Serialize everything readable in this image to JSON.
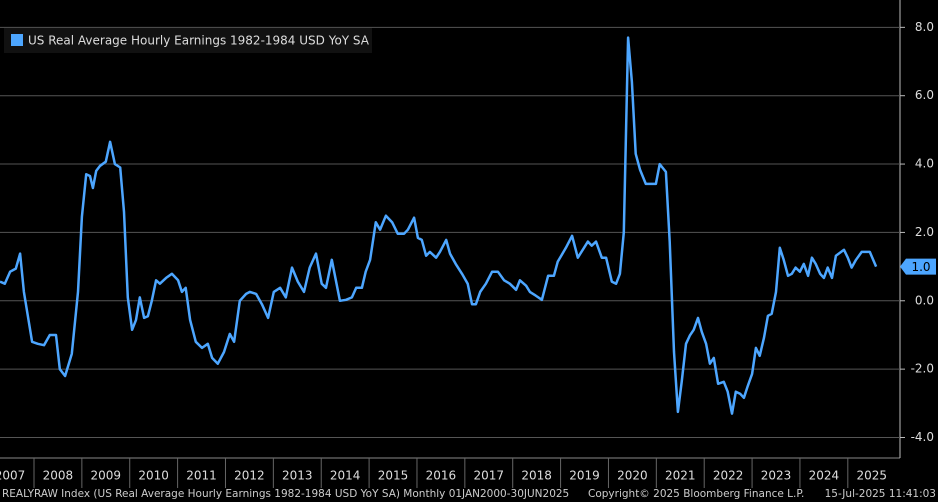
{
  "chart_data": {
    "type": "line",
    "legend": "upper left",
    "grid": true,
    "axis_side": "right",
    "xlim": [
      2007.29,
      2026.09
    ],
    "ylim": [
      -4.6,
      8.8
    ],
    "yticks": [
      {
        "value": 8,
        "label": "8.0"
      },
      {
        "value": 6,
        "label": "6.0"
      },
      {
        "value": 4,
        "label": "4.0"
      },
      {
        "value": 2,
        "label": "2.0"
      },
      {
        "value": 0,
        "label": "0.0"
      },
      {
        "value": -2,
        "label": "-2.0"
      },
      {
        "value": -4,
        "label": "-4.0"
      }
    ],
    "xticks": [
      {
        "value": 2007.5,
        "label": "2007"
      },
      {
        "value": 2008.5,
        "label": "2008"
      },
      {
        "value": 2009.5,
        "label": "2009"
      },
      {
        "value": 2010.5,
        "label": "2010"
      },
      {
        "value": 2011.5,
        "label": "2011"
      },
      {
        "value": 2012.5,
        "label": "2012"
      },
      {
        "value": 2013.5,
        "label": "2013"
      },
      {
        "value": 2014.5,
        "label": "2014"
      },
      {
        "value": 2015.5,
        "label": "2015"
      },
      {
        "value": 2016.5,
        "label": "2016"
      },
      {
        "value": 2017.5,
        "label": "2017"
      },
      {
        "value": 2018.5,
        "label": "2018"
      },
      {
        "value": 2019.5,
        "label": "2019"
      },
      {
        "value": 2020.5,
        "label": "2020"
      },
      {
        "value": 2021.5,
        "label": "2021"
      },
      {
        "value": 2022.5,
        "label": "2022"
      },
      {
        "value": 2023.5,
        "label": "2023"
      },
      {
        "value": 2024.5,
        "label": "2024"
      },
      {
        "value": 2025.5,
        "label": "2025"
      }
    ],
    "x": [
      2007.29,
      2007.39,
      2007.5,
      2007.62,
      2007.71,
      2007.79,
      2007.96,
      2008.08,
      2008.21,
      2008.33,
      2008.46,
      2008.54,
      2008.65,
      2008.79,
      2008.92,
      2009.0,
      2009.09,
      2009.17,
      2009.23,
      2009.3,
      2009.38,
      2009.5,
      2009.59,
      2009.69,
      2009.8,
      2009.88,
      2009.96,
      2010.05,
      2010.13,
      2010.21,
      2010.3,
      2010.38,
      2010.46,
      2010.55,
      2010.63,
      2010.76,
      2010.88,
      2011.01,
      2011.09,
      2011.17,
      2011.26,
      2011.38,
      2011.51,
      2011.63,
      2011.72,
      2011.84,
      2011.97,
      2012.09,
      2012.18,
      2012.3,
      2012.43,
      2012.51,
      2012.64,
      2012.76,
      2012.89,
      2013.01,
      2013.14,
      2013.26,
      2013.39,
      2013.51,
      2013.64,
      2013.76,
      2013.89,
      2014.01,
      2014.1,
      2014.22,
      2014.39,
      2014.52,
      2014.64,
      2014.73,
      2014.85,
      2014.93,
      2015.02,
      2015.14,
      2015.23,
      2015.35,
      2015.48,
      2015.6,
      2015.73,
      2015.81,
      2015.94,
      2016.02,
      2016.1,
      2016.19,
      2016.27,
      2016.4,
      2016.48,
      2016.61,
      2016.69,
      2016.81,
      2016.94,
      2017.06,
      2017.15,
      2017.23,
      2017.32,
      2017.44,
      2017.57,
      2017.69,
      2017.82,
      2017.94,
      2018.07,
      2018.15,
      2018.28,
      2018.36,
      2018.48,
      2018.61,
      2018.74,
      2018.86,
      2018.94,
      2019.11,
      2019.24,
      2019.36,
      2019.49,
      2019.57,
      2019.65,
      2019.74,
      2019.86,
      2019.95,
      2020.07,
      2020.16,
      2020.24,
      2020.32,
      2020.41,
      2020.49,
      2020.57,
      2020.66,
      2020.78,
      2020.91,
      2020.99,
      2021.07,
      2021.2,
      2021.28,
      2021.37,
      2021.45,
      2021.53,
      2021.62,
      2021.7,
      2021.78,
      2021.87,
      2021.95,
      2022.04,
      2022.12,
      2022.2,
      2022.29,
      2022.41,
      2022.49,
      2022.58,
      2022.66,
      2022.75,
      2022.83,
      2022.91,
      2023.0,
      2023.08,
      2023.16,
      2023.25,
      2023.33,
      2023.41,
      2023.5,
      2023.58,
      2023.66,
      2023.75,
      2023.83,
      2023.91,
      2024.0,
      2024.08,
      2024.17,
      2024.25,
      2024.33,
      2024.42,
      2024.5,
      2024.58,
      2024.67,
      2024.75,
      2024.92,
      2025.0,
      2025.08,
      2025.17,
      2025.29,
      2025.46,
      2025.59
    ],
    "series": [
      {
        "name": "US Real Average Hourly Earnings 1982-1984 USD YoY SA",
        "color": "#4da6ff",
        "values": [
          0.56,
          0.5,
          0.85,
          0.94,
          1.38,
          0.26,
          -1.2,
          -1.26,
          -1.3,
          -1.0,
          -1.0,
          -2.0,
          -2.2,
          -1.55,
          0.26,
          2.46,
          3.7,
          3.65,
          3.3,
          3.8,
          3.95,
          4.07,
          4.65,
          4.0,
          3.9,
          2.6,
          0.1,
          -0.85,
          -0.56,
          0.1,
          -0.5,
          -0.45,
          0.0,
          0.6,
          0.5,
          0.67,
          0.79,
          0.6,
          0.26,
          0.38,
          -0.56,
          -1.2,
          -1.38,
          -1.26,
          -1.67,
          -1.84,
          -1.5,
          -0.97,
          -1.2,
          0.0,
          0.2,
          0.26,
          0.2,
          -0.1,
          -0.5,
          0.26,
          0.38,
          0.1,
          0.97,
          0.56,
          0.26,
          0.97,
          1.38,
          0.5,
          0.38,
          1.2,
          0.0,
          0.03,
          0.1,
          0.38,
          0.38,
          0.85,
          1.2,
          2.3,
          2.08,
          2.49,
          2.3,
          1.96,
          1.96,
          2.08,
          2.43,
          1.84,
          1.78,
          1.32,
          1.43,
          1.26,
          1.43,
          1.78,
          1.38,
          1.08,
          0.79,
          0.5,
          -0.1,
          -0.1,
          0.26,
          0.5,
          0.85,
          0.85,
          0.6,
          0.5,
          0.32,
          0.6,
          0.44,
          0.26,
          0.15,
          0.03,
          0.73,
          0.73,
          1.14,
          1.55,
          1.9,
          1.26,
          1.55,
          1.73,
          1.61,
          1.73,
          1.26,
          1.26,
          0.56,
          0.5,
          0.79,
          2.0,
          7.7,
          6.4,
          4.3,
          3.83,
          3.42,
          3.42,
          3.42,
          4.0,
          3.77,
          1.73,
          -1.5,
          -3.25,
          -2.37,
          -1.26,
          -1.02,
          -0.85,
          -0.5,
          -0.91,
          -1.26,
          -1.84,
          -1.67,
          -2.43,
          -2.37,
          -2.66,
          -3.3,
          -2.66,
          -2.72,
          -2.84,
          -2.49,
          -2.14,
          -1.38,
          -1.61,
          -1.08,
          -0.44,
          -0.38,
          0.26,
          1.55,
          1.2,
          0.73,
          0.79,
          0.97,
          0.85,
          1.08,
          0.73,
          1.26,
          1.08,
          0.79,
          0.67,
          0.97,
          0.67,
          1.32,
          1.49,
          1.26,
          0.97,
          1.2,
          1.43,
          1.43,
          1.0
        ]
      }
    ],
    "last_value_label": "1.0",
    "footer": {
      "left": "REALYRAW Index (US Real Average Hourly Earnings 1982-1984 USD YoY SA)  Monthly 01JAN2000-30JUN2025",
      "center": "Copyright© 2025 Bloomberg Finance L.P.",
      "right": "15-Jul-2025 11:41:03"
    }
  }
}
